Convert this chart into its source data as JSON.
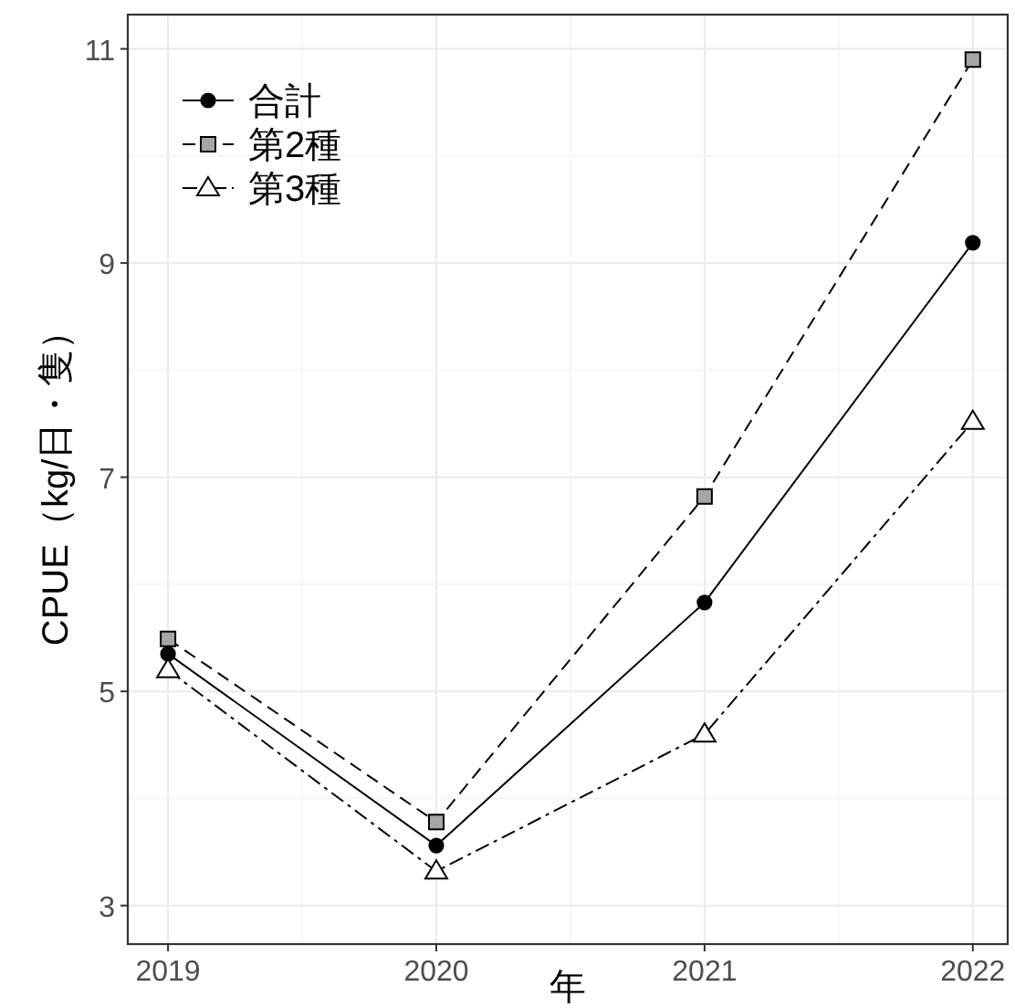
{
  "chart_data": {
    "type": "line",
    "xlabel": "年",
    "ylabel": "CPUE（kg/日・隻）",
    "x": [
      2019,
      2020,
      2021,
      2022
    ],
    "series": [
      {
        "name": "合計",
        "color": "#000000",
        "marker": "circle",
        "line_style": "solid",
        "values": [
          5.35,
          3.56,
          5.83,
          9.19
        ]
      },
      {
        "name": "第2種",
        "color": "#000000",
        "marker": "square",
        "line_style": "dashed",
        "values": [
          5.49,
          3.78,
          6.82,
          10.9
        ]
      },
      {
        "name": "第3種",
        "color": "#000000",
        "marker": "triangle",
        "line_style": "dashdot",
        "values": [
          5.2,
          3.32,
          4.6,
          7.52
        ]
      }
    ],
    "xlim": [
      2018.85,
      2022.13
    ],
    "ylim": [
      2.64,
      11.32
    ],
    "xticks": [
      2019,
      2020,
      2021,
      2022
    ],
    "yticks": [
      3,
      5,
      7,
      9,
      11
    ],
    "grid": true,
    "legend": "top left"
  }
}
